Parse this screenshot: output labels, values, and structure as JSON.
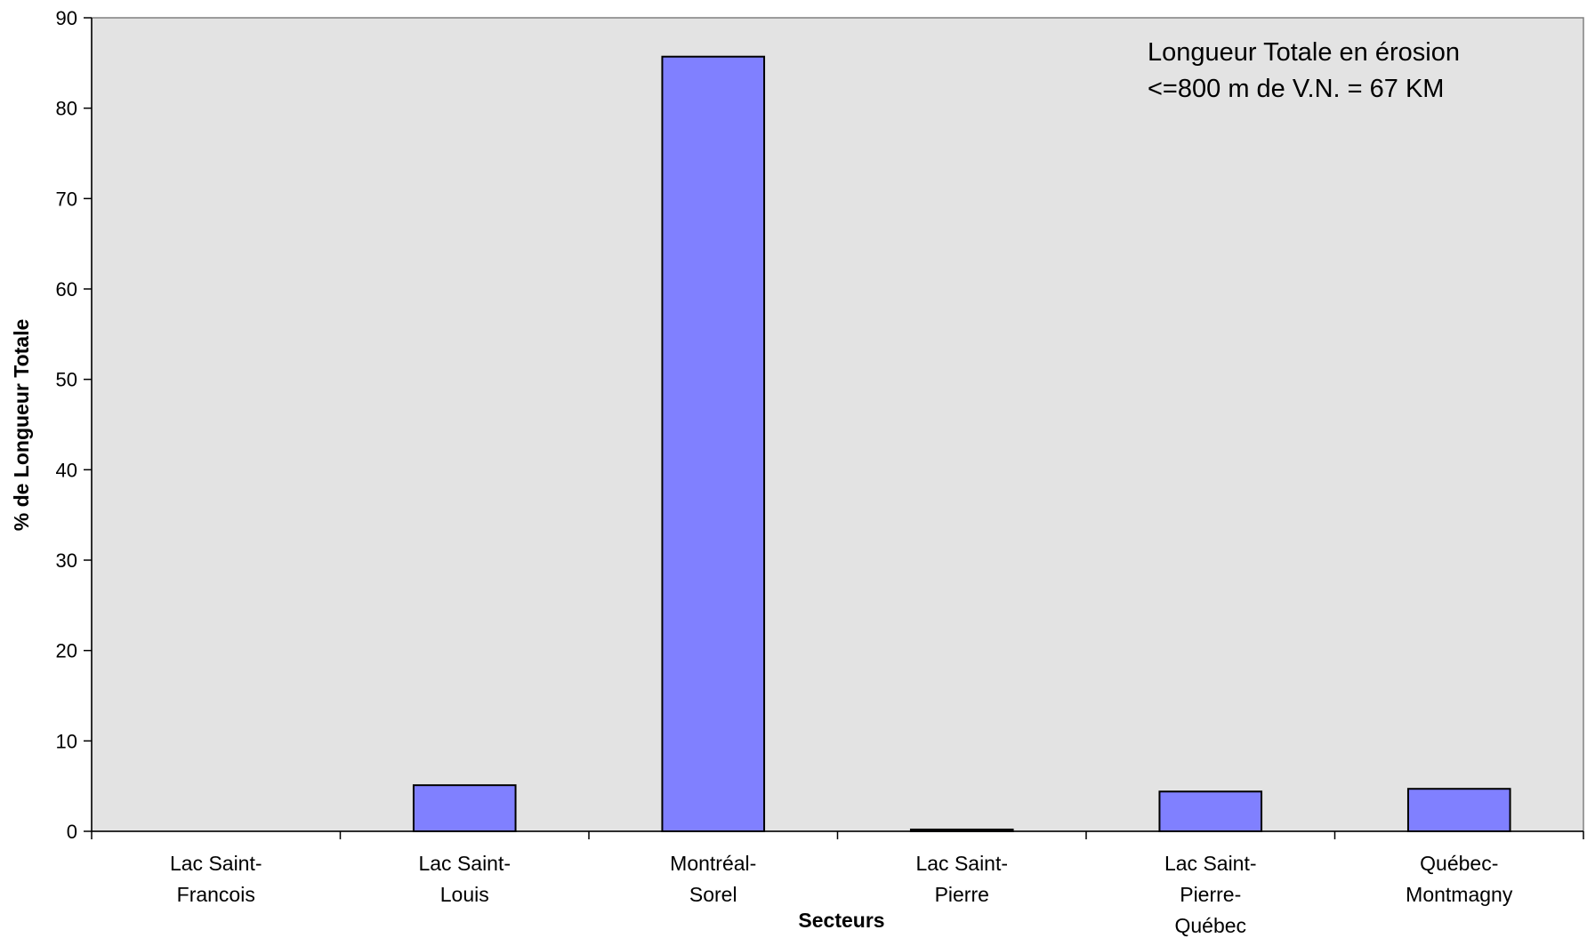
{
  "chart_data": {
    "type": "bar",
    "categories": [
      [
        "Lac Saint-",
        "Francois"
      ],
      [
        "Lac Saint-",
        "Louis"
      ],
      [
        "Montréal-",
        "Sorel"
      ],
      [
        "Lac Saint-",
        "Pierre"
      ],
      [
        "Lac Saint-",
        "Pierre-",
        "Québec"
      ],
      [
        "Québec-",
        "Montmagny"
      ]
    ],
    "values": [
      0,
      5.1,
      85.7,
      0.2,
      4.4,
      4.7
    ],
    "title": "",
    "xlabel": "Secteurs",
    "ylabel": "% de Longueur Totale",
    "ylim": [
      0,
      90
    ],
    "yticks": [
      0,
      10,
      20,
      30,
      40,
      50,
      60,
      70,
      80,
      90
    ],
    "annotation": [
      "Longueur Totale  en érosion",
      "<=800 m de V.N. =  67 KM"
    ],
    "grid": false,
    "legend": "none",
    "colors": {
      "plot_background": "#E3E3E3",
      "bar_fill": "#8080FF",
      "bar_stroke": "#000000",
      "axis": "#000000"
    }
  }
}
